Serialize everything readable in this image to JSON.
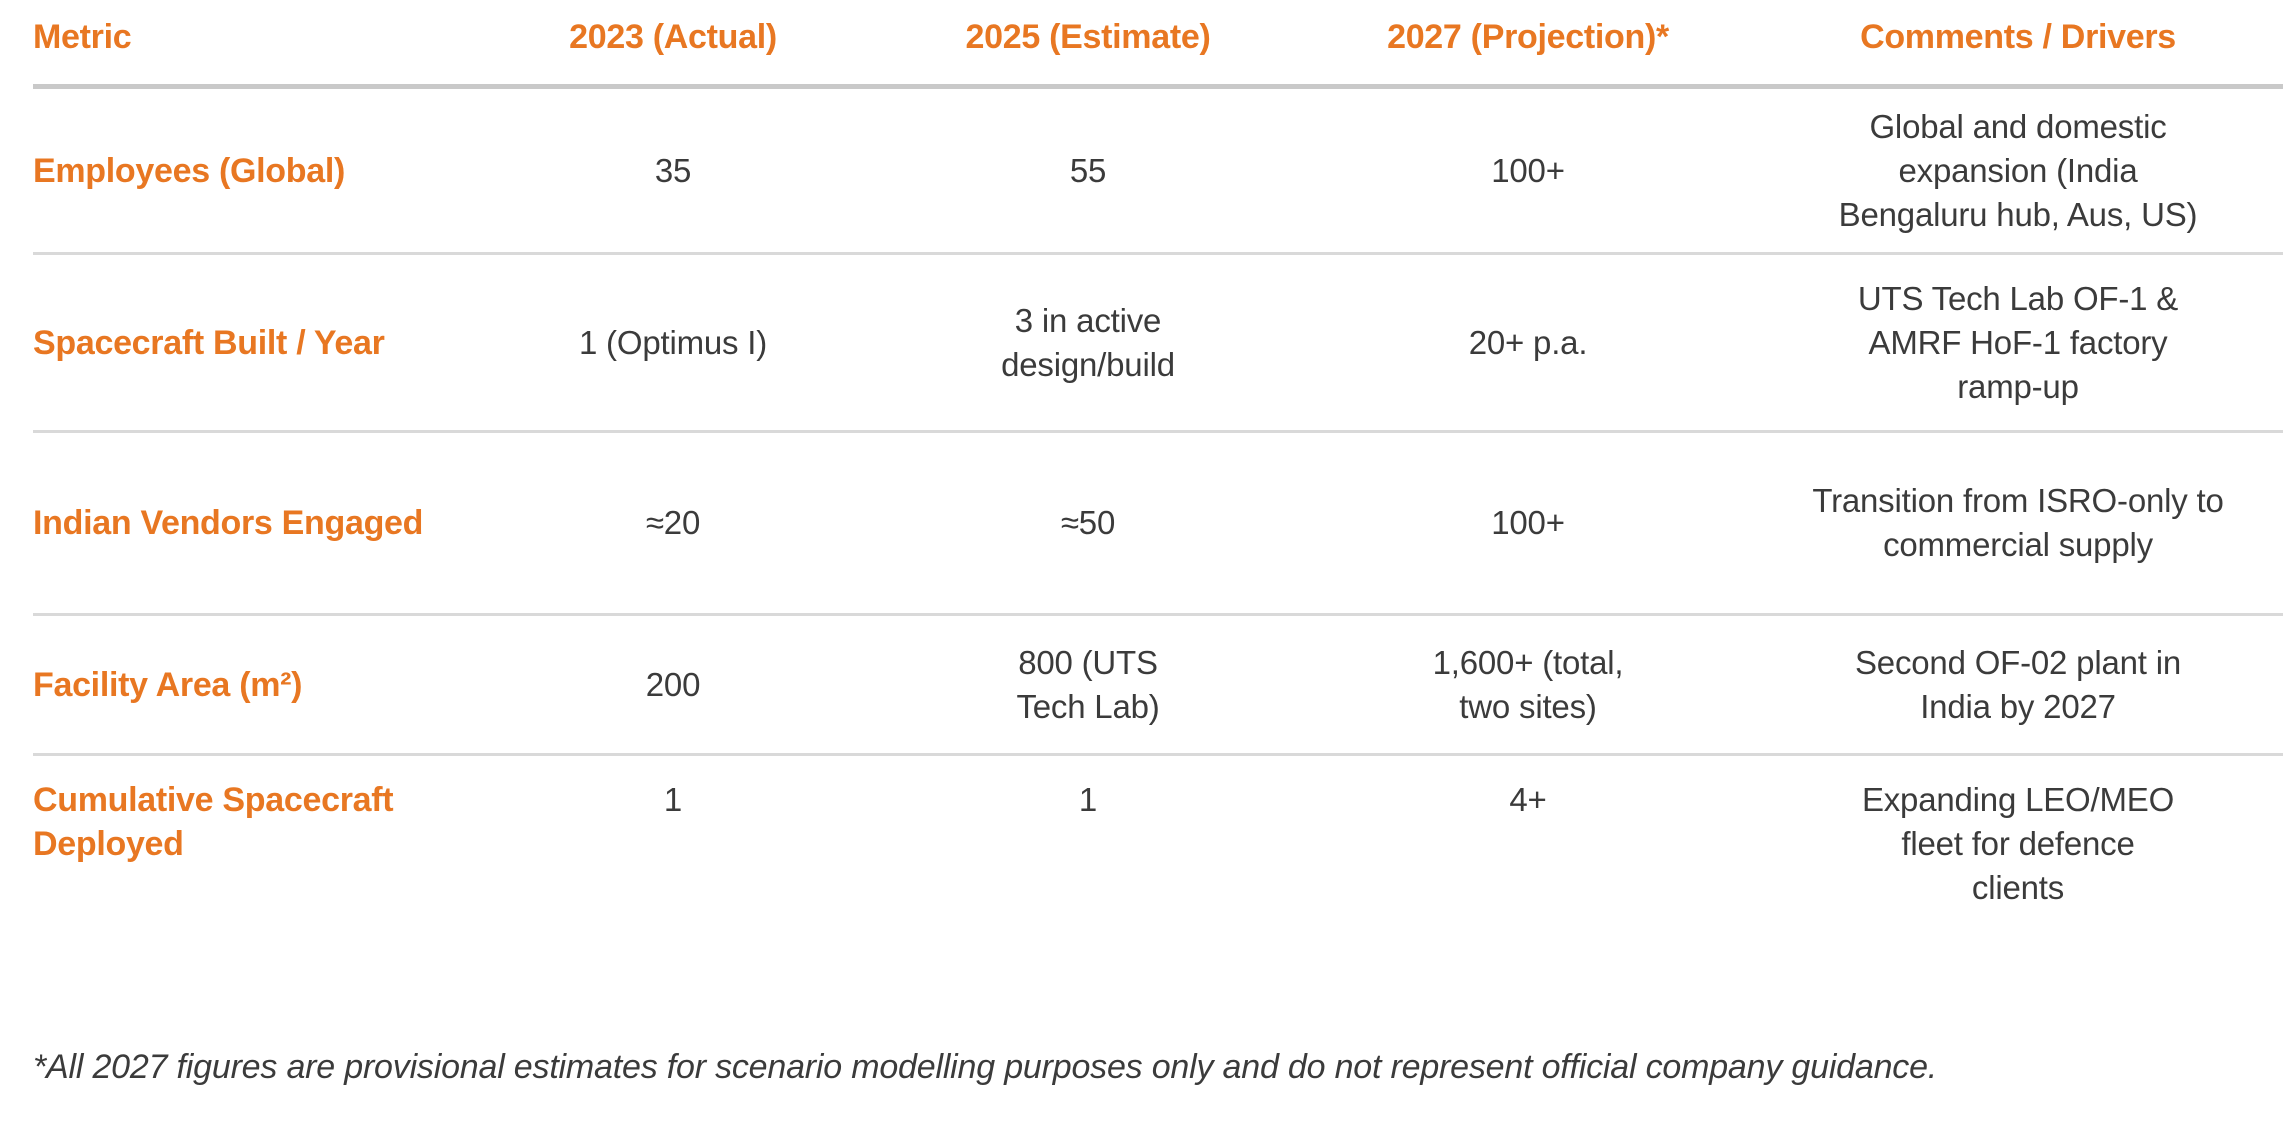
{
  "table": {
    "accent_color": "#e87722",
    "text_color": "#3b3b3b",
    "header_rule_color": "#c9c9c9",
    "row_rule_color": "#d9d9d9",
    "columns": [
      {
        "label": "Metric"
      },
      {
        "label": "2023 (Actual)"
      },
      {
        "label": "2025 (Estimate)"
      },
      {
        "label": "2027 (Projection)*"
      },
      {
        "label": "Comments / Drivers"
      }
    ],
    "rows": [
      {
        "metric": "Employees (Global)",
        "y2023": "35",
        "y2025": "55",
        "y2027": "100+",
        "comments": "Global and domestic\nexpansion (India\nBengaluru hub, Aus, US)"
      },
      {
        "metric": "Spacecraft Built / Year",
        "y2023": "1 (Optimus I)",
        "y2025": "3 in active\ndesign/build",
        "y2027": "20+ p.a.",
        "comments": "UTS Tech Lab OF-1 &\nAMRF HoF-1 factory\nramp-up"
      },
      {
        "metric": "Indian Vendors Engaged",
        "y2023": "≈20",
        "y2025": "≈50",
        "y2027": "100+",
        "comments": "Transition from ISRO-only to\ncommercial supply"
      },
      {
        "metric": "Facility Area (m²)",
        "y2023": "200",
        "y2025": "800 (UTS\nTech Lab)",
        "y2027": "1,600+ (total,\ntwo sites)",
        "comments": "Second OF-02 plant in\nIndia by 2027"
      },
      {
        "metric": "Cumulative Spacecraft\nDeployed",
        "y2023": "1",
        "y2025": "1",
        "y2027": "4+",
        "comments": "Expanding LEO/MEO\nfleet for defence\nclients"
      }
    ],
    "footnote": "*All 2027 figures are provisional estimates for scenario modelling purposes only and do not represent official company guidance."
  }
}
